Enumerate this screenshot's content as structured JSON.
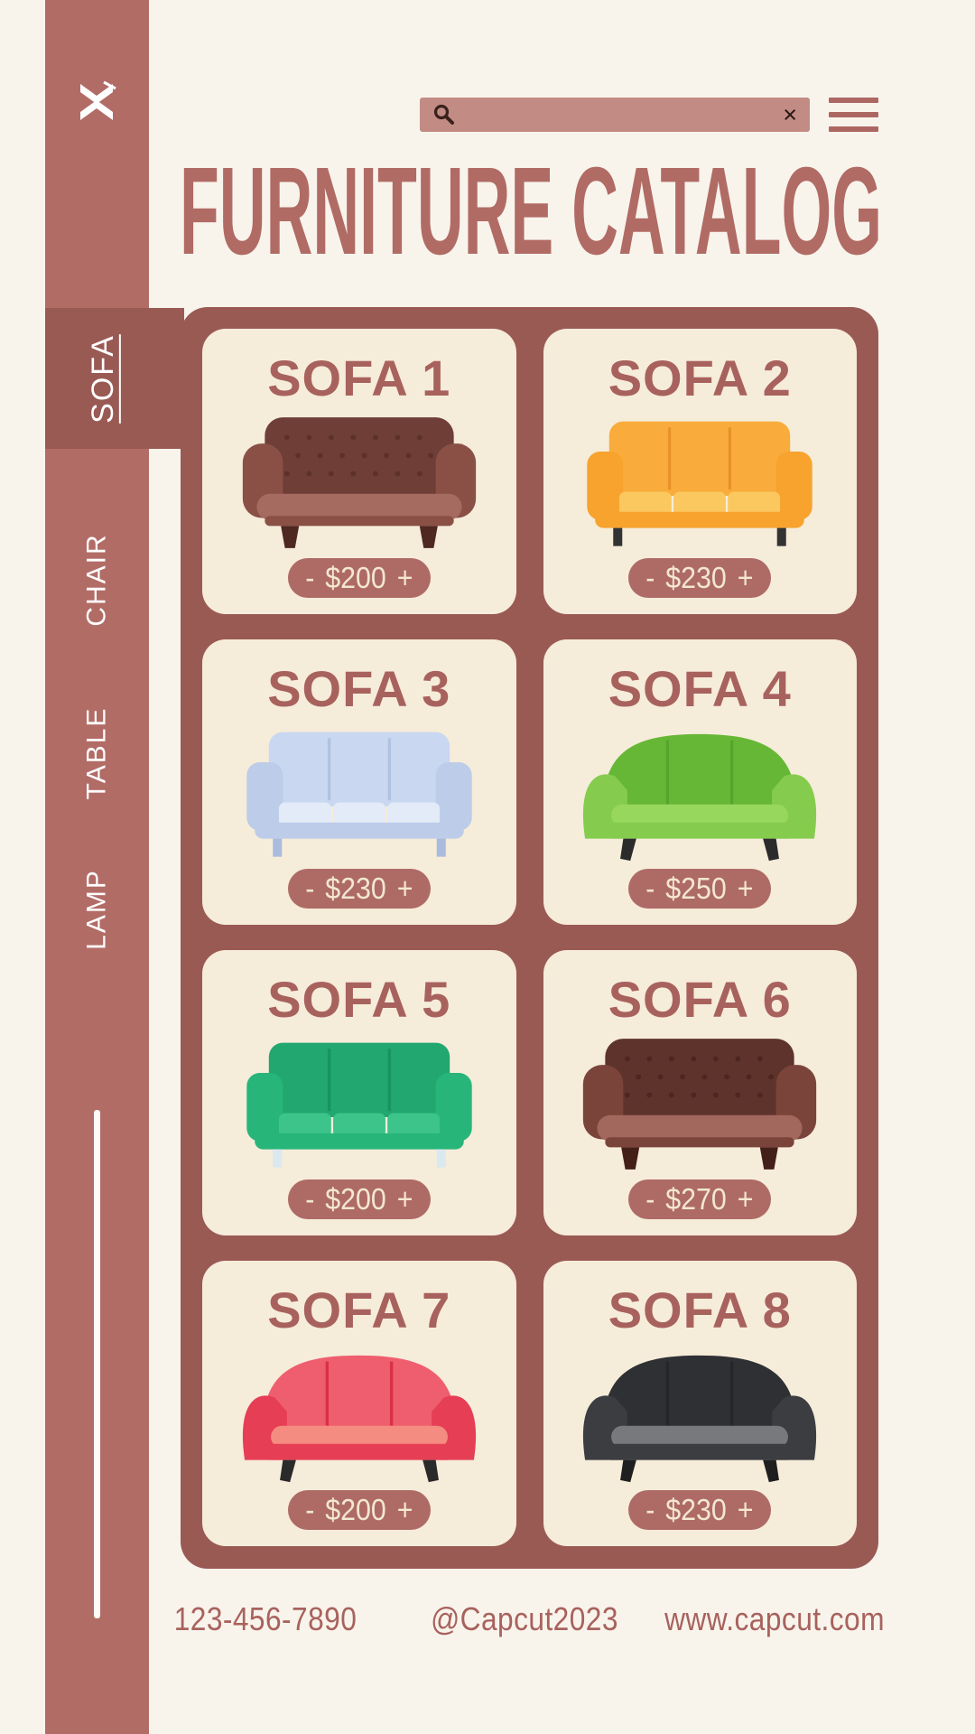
{
  "colors": {
    "background": "#F8F4EC",
    "sidebar": "#B26C66",
    "panel": "#9A5A54",
    "card": "#F6ECDA",
    "accent_text": "#A8625D",
    "title_text": "#B16B65",
    "search_bar": "#C28B84",
    "pill": "#AE6B66",
    "pill_text": "#F3E7D2"
  },
  "sidebar": {
    "logo_icon": "capcut-logo",
    "active_item": "SOFA",
    "items": [
      {
        "label": "SOFA",
        "active": true
      },
      {
        "label": "CHAIR",
        "active": false
      },
      {
        "label": "TABLE",
        "active": false
      },
      {
        "label": "LAMP",
        "active": false
      }
    ]
  },
  "topbar": {
    "search": {
      "value": "",
      "placeholder": "",
      "icon": "search-icon",
      "clear_label": "×"
    },
    "menu_icon": "hamburger-menu-icon"
  },
  "header": {
    "title": "FURNITURE CATALOG"
  },
  "catalog": {
    "stepper": {
      "decrease": "-",
      "increase": "+"
    },
    "items": [
      {
        "name": "SOFA 1",
        "price": "$200",
        "variant": "chesterfield",
        "colors": {
          "back": "#6F3E36",
          "arm": "#8A5046",
          "seat": "#A56A60",
          "leg": "#4F2822",
          "tuft": "#5B312A",
          "seam": "#5B312A"
        }
      },
      {
        "name": "SOFA 2",
        "price": "$230",
        "variant": "modern",
        "colors": {
          "back": "#F9AC3B",
          "arm": "#F7A32E",
          "seat": "#FBC75F",
          "leg": "#333333",
          "tuft": "#E8922A",
          "seam": "#E8922A"
        }
      },
      {
        "name": "SOFA 3",
        "price": "$230",
        "variant": "modern",
        "colors": {
          "back": "#C9D7F0",
          "arm": "#BCCCE9",
          "seat": "#E3EAF8",
          "leg": "#A9BCDD",
          "tuft": "#AFC2E2",
          "seam": "#AFC2E2"
        }
      },
      {
        "name": "SOFA 4",
        "price": "$250",
        "variant": "wing",
        "colors": {
          "back": "#67B737",
          "arm": "#85CC4E",
          "seat": "#98D75D",
          "leg": "#2B2B2B",
          "tuft": "#57A52D",
          "seam": "#57A52D"
        }
      },
      {
        "name": "SOFA 5",
        "price": "$200",
        "variant": "modern",
        "colors": {
          "back": "#21A76F",
          "arm": "#27B57A",
          "seat": "#3DC48A",
          "leg": "#D9E9EF",
          "tuft": "#18935F",
          "seam": "#18935F"
        }
      },
      {
        "name": "SOFA 6",
        "price": "$270",
        "variant": "chesterfield",
        "colors": {
          "back": "#5E332C",
          "arm": "#7B443A",
          "seat": "#A2675D",
          "leg": "#441F19",
          "tuft": "#4C261F",
          "seam": "#4C261F"
        }
      },
      {
        "name": "SOFA 7",
        "price": "$200",
        "variant": "wing",
        "colors": {
          "back": "#EF5E6E",
          "arm": "#E63E55",
          "seat": "#F58C82",
          "leg": "#2A2A2A",
          "tuft": "#D92F47",
          "seam": "#D92F47"
        }
      },
      {
        "name": "SOFA 8",
        "price": "$230",
        "variant": "wing",
        "colors": {
          "back": "#2E3033",
          "arm": "#3B3D41",
          "seat": "#77797C",
          "leg": "#1F1F1F",
          "tuft": "#242629",
          "seam": "#242629"
        }
      }
    ]
  },
  "footer": {
    "phone": "123-456-7890",
    "handle": "@Capcut2023",
    "website": "www.capcut.com"
  }
}
